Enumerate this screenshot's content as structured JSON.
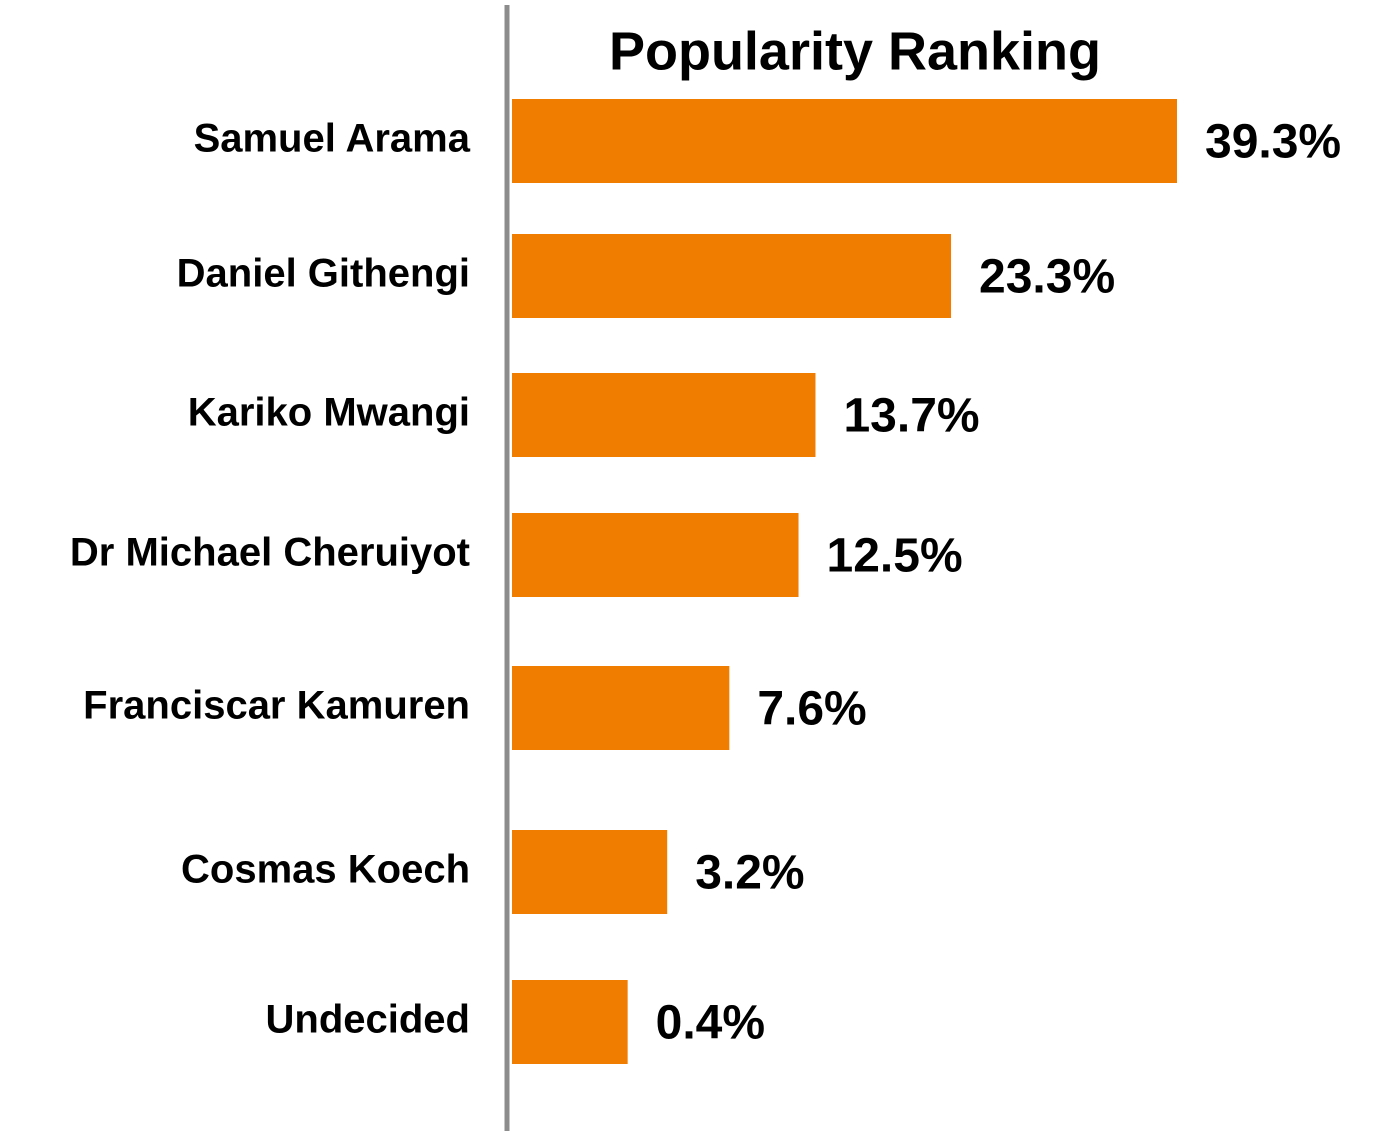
{
  "chart_data": {
    "type": "bar",
    "orientation": "horizontal",
    "title": "Popularity Ranking",
    "categories": [
      "Samuel Arama",
      "Daniel Githengi",
      "Kariko Mwangi",
      "Dr Michael Cheruiyot",
      "Franciscar Kamuren",
      "Cosmas Koech",
      "Undecided"
    ],
    "values": [
      39.3,
      23.3,
      13.7,
      12.5,
      7.6,
      3.2,
      0.4
    ],
    "value_labels": [
      "39.3%",
      "23.3%",
      "13.7%",
      "12.5%",
      "7.6%",
      "3.2%",
      "0.4%"
    ],
    "color": "#f07c00"
  }
}
